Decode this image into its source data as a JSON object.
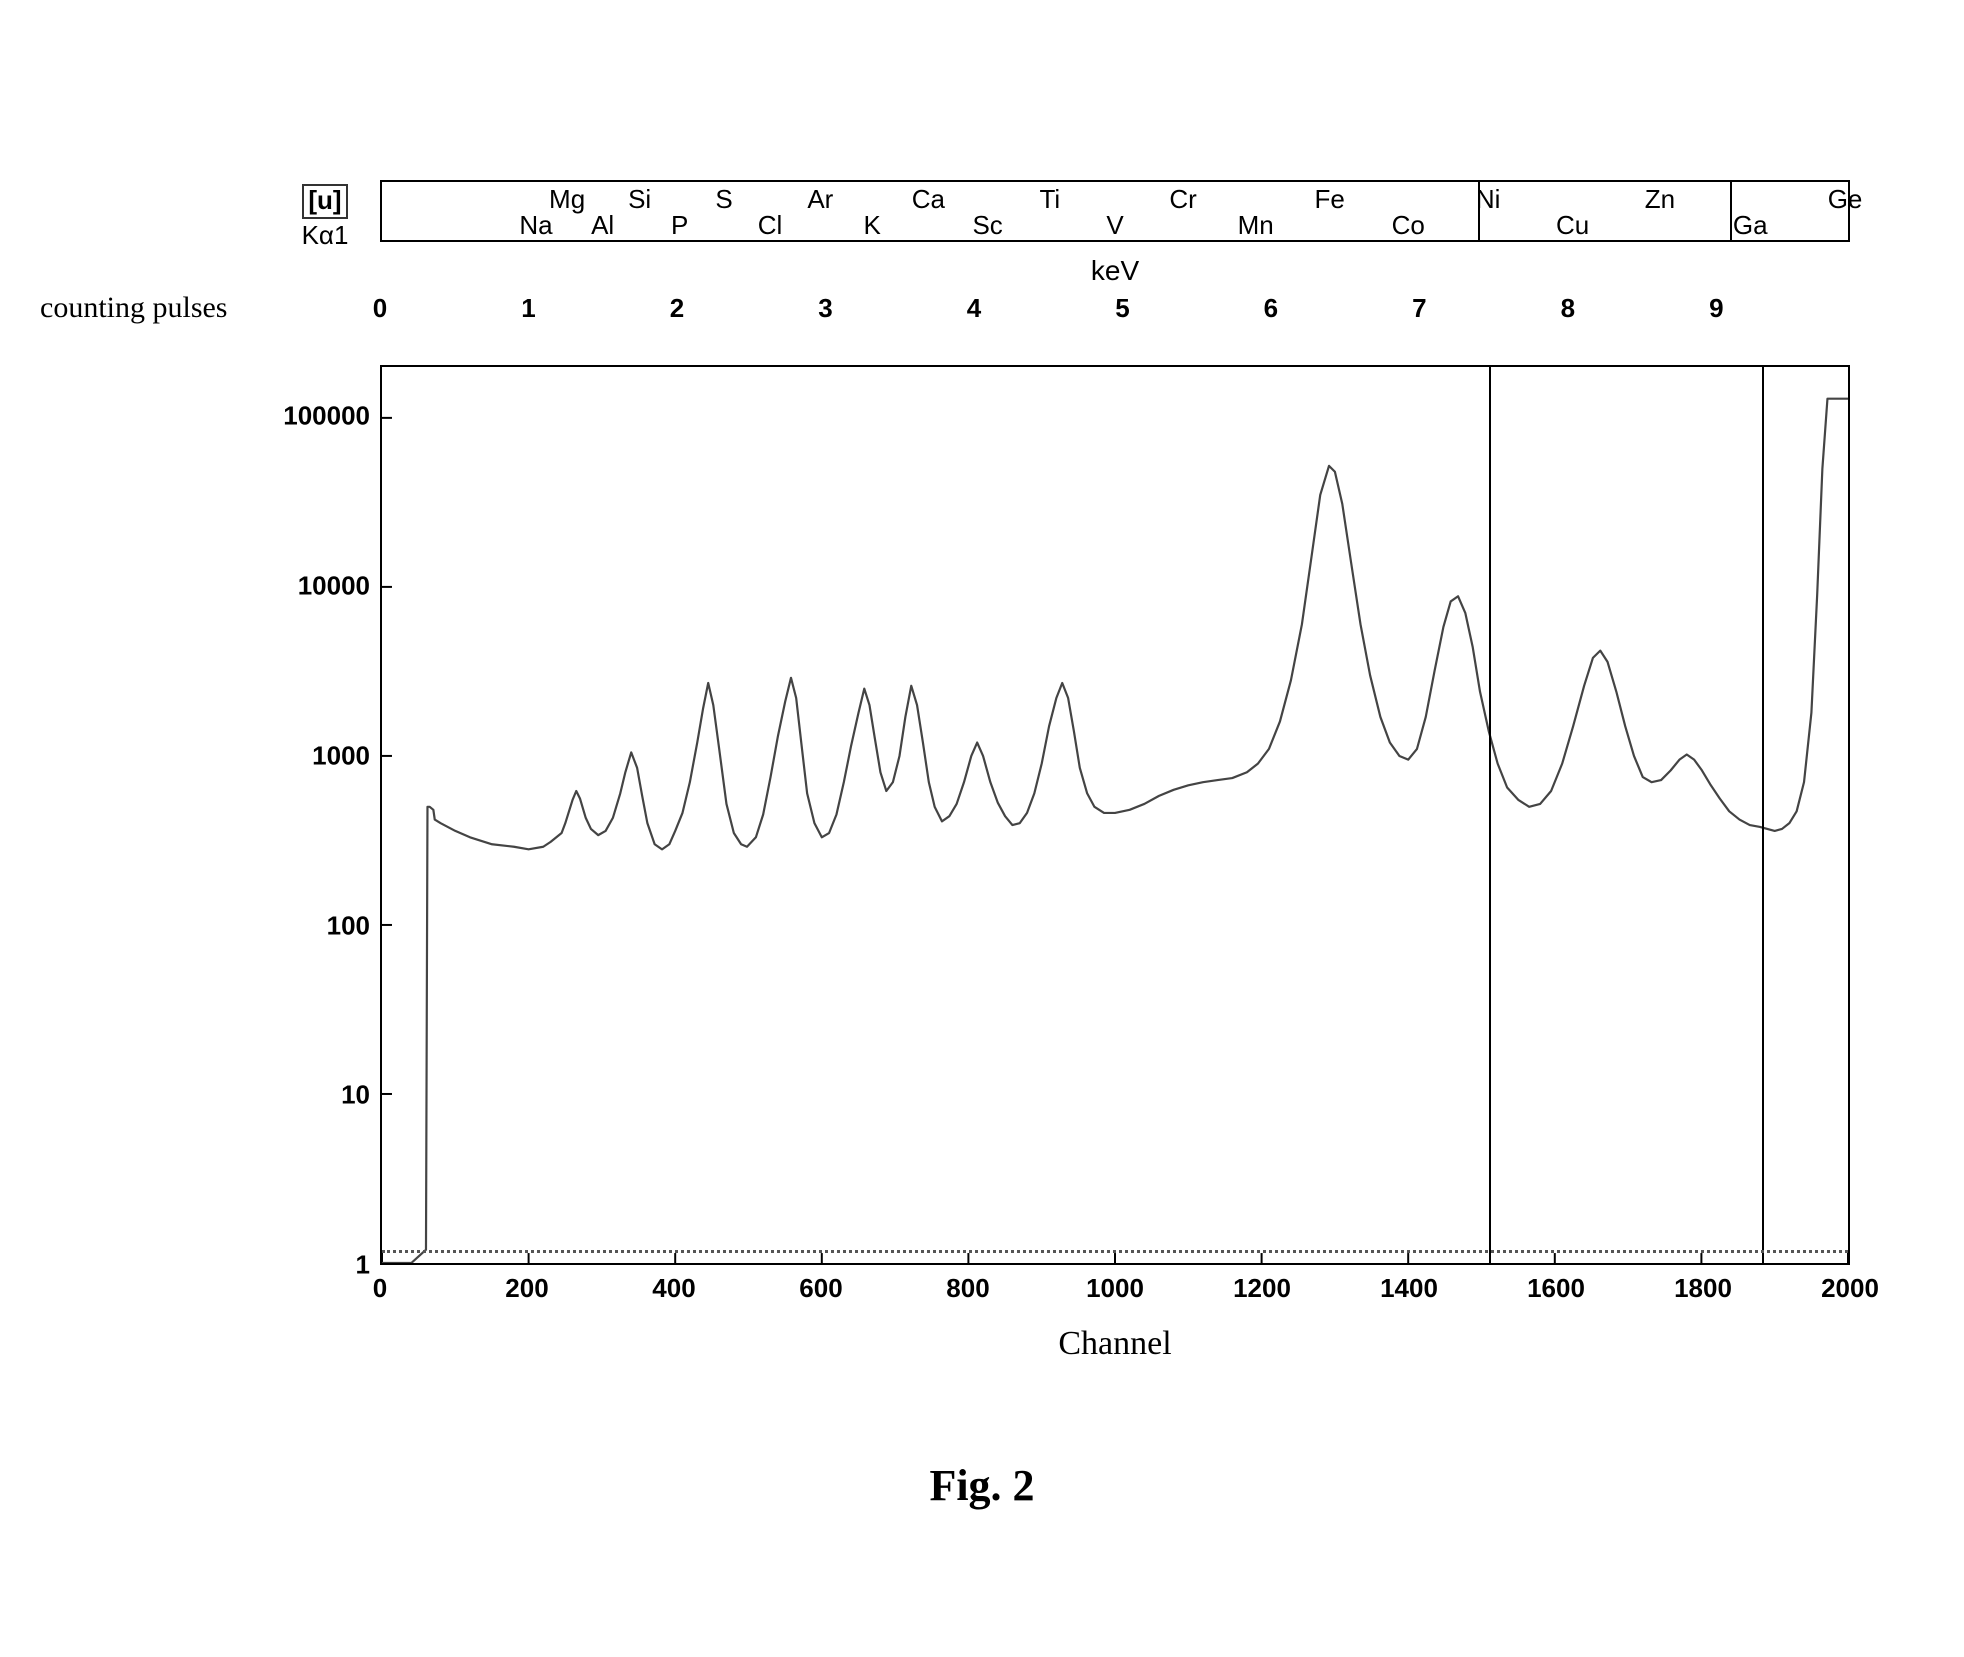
{
  "chart": {
    "type": "line",
    "element_bar": {
      "label_top_boxed": "[u]",
      "label_bottom": "Kα1",
      "elements": [
        {
          "symbol": "Na",
          "kev": 1.04,
          "row": "bottom"
        },
        {
          "symbol": "Mg",
          "kev": 1.25,
          "row": "top"
        },
        {
          "symbol": "Al",
          "kev": 1.49,
          "row": "bottom"
        },
        {
          "symbol": "Si",
          "kev": 1.74,
          "row": "top"
        },
        {
          "symbol": "P",
          "kev": 2.01,
          "row": "bottom"
        },
        {
          "symbol": "S",
          "kev": 2.31,
          "row": "top"
        },
        {
          "symbol": "Cl",
          "kev": 2.62,
          "row": "bottom"
        },
        {
          "symbol": "Ar",
          "kev": 2.96,
          "row": "top"
        },
        {
          "symbol": "K",
          "kev": 3.31,
          "row": "bottom"
        },
        {
          "symbol": "Ca",
          "kev": 3.69,
          "row": "top"
        },
        {
          "symbol": "Sc",
          "kev": 4.09,
          "row": "bottom"
        },
        {
          "symbol": "Ti",
          "kev": 4.51,
          "row": "top"
        },
        {
          "symbol": "V",
          "kev": 4.95,
          "row": "bottom"
        },
        {
          "symbol": "Cr",
          "kev": 5.41,
          "row": "top"
        },
        {
          "symbol": "Mn",
          "kev": 5.9,
          "row": "bottom"
        },
        {
          "symbol": "Fe",
          "kev": 6.4,
          "row": "top"
        },
        {
          "symbol": "Co",
          "kev": 6.93,
          "row": "bottom"
        },
        {
          "symbol": "Ni",
          "kev": 7.47,
          "row": "top"
        },
        {
          "symbol": "Cu",
          "kev": 8.04,
          "row": "bottom"
        },
        {
          "symbol": "Zn",
          "kev": 8.63,
          "row": "top"
        },
        {
          "symbol": "Ga",
          "kev": 9.24,
          "row": "bottom"
        },
        {
          "symbol": "Ge",
          "kev": 9.88,
          "row": "top"
        }
      ],
      "dividers_kev": [
        7.4,
        9.1
      ],
      "kev_min": 0,
      "kev_max": 9.9
    },
    "kev_axis": {
      "label": "keV",
      "ticks": [
        0,
        1,
        2,
        3,
        4,
        5,
        6,
        7,
        8,
        9
      ]
    },
    "y_axis": {
      "label": "counting pulses",
      "scale": "log",
      "ticks": [
        1,
        10,
        100,
        1000,
        10000,
        100000
      ],
      "tick_labels": [
        "1",
        "10",
        "100",
        "1000",
        "10000",
        "100000"
      ],
      "min": 1,
      "max": 200000
    },
    "x_axis": {
      "label": "Channel",
      "min": 0,
      "max": 2000,
      "ticks": [
        0,
        200,
        400,
        600,
        800,
        1000,
        1200,
        1400,
        1600,
        1800,
        2000
      ]
    },
    "plot_vlines_channel": [
      1510,
      1882
    ],
    "baseline_dotted_y": 1.2,
    "line_color": "#444444",
    "line_width": 2.2,
    "background_color": "#ffffff",
    "spectrum": [
      [
        0,
        1
      ],
      [
        40,
        1
      ],
      [
        60,
        1.2
      ],
      [
        62,
        500
      ],
      [
        65,
        500
      ],
      [
        70,
        480
      ],
      [
        72,
        420
      ],
      [
        80,
        400
      ],
      [
        100,
        360
      ],
      [
        120,
        330
      ],
      [
        150,
        300
      ],
      [
        180,
        290
      ],
      [
        200,
        280
      ],
      [
        220,
        290
      ],
      [
        230,
        310
      ],
      [
        245,
        350
      ],
      [
        250,
        400
      ],
      [
        260,
        550
      ],
      [
        265,
        620
      ],
      [
        270,
        560
      ],
      [
        278,
        430
      ],
      [
        285,
        370
      ],
      [
        295,
        340
      ],
      [
        305,
        360
      ],
      [
        315,
        430
      ],
      [
        325,
        600
      ],
      [
        332,
        800
      ],
      [
        340,
        1050
      ],
      [
        348,
        850
      ],
      [
        355,
        580
      ],
      [
        362,
        400
      ],
      [
        372,
        300
      ],
      [
        382,
        280
      ],
      [
        392,
        300
      ],
      [
        400,
        360
      ],
      [
        410,
        460
      ],
      [
        420,
        700
      ],
      [
        430,
        1200
      ],
      [
        438,
        1900
      ],
      [
        445,
        2700
      ],
      [
        452,
        2000
      ],
      [
        460,
        1100
      ],
      [
        470,
        520
      ],
      [
        480,
        350
      ],
      [
        490,
        300
      ],
      [
        498,
        290
      ],
      [
        510,
        330
      ],
      [
        520,
        450
      ],
      [
        530,
        750
      ],
      [
        540,
        1300
      ],
      [
        550,
        2100
      ],
      [
        558,
        2900
      ],
      [
        565,
        2200
      ],
      [
        572,
        1200
      ],
      [
        580,
        600
      ],
      [
        590,
        400
      ],
      [
        600,
        330
      ],
      [
        610,
        350
      ],
      [
        620,
        450
      ],
      [
        630,
        700
      ],
      [
        640,
        1150
      ],
      [
        650,
        1800
      ],
      [
        658,
        2500
      ],
      [
        665,
        2000
      ],
      [
        672,
        1300
      ],
      [
        680,
        800
      ],
      [
        688,
        620
      ],
      [
        697,
        700
      ],
      [
        706,
        1000
      ],
      [
        714,
        1700
      ],
      [
        722,
        2600
      ],
      [
        730,
        2000
      ],
      [
        738,
        1200
      ],
      [
        746,
        700
      ],
      [
        754,
        500
      ],
      [
        764,
        410
      ],
      [
        774,
        440
      ],
      [
        784,
        520
      ],
      [
        794,
        700
      ],
      [
        804,
        1000
      ],
      [
        812,
        1200
      ],
      [
        820,
        1000
      ],
      [
        830,
        700
      ],
      [
        840,
        530
      ],
      [
        850,
        440
      ],
      [
        860,
        390
      ],
      [
        870,
        400
      ],
      [
        880,
        460
      ],
      [
        890,
        600
      ],
      [
        900,
        900
      ],
      [
        910,
        1500
      ],
      [
        920,
        2200
      ],
      [
        928,
        2700
      ],
      [
        936,
        2200
      ],
      [
        944,
        1400
      ],
      [
        952,
        850
      ],
      [
        962,
        600
      ],
      [
        972,
        500
      ],
      [
        985,
        460
      ],
      [
        1000,
        460
      ],
      [
        1020,
        480
      ],
      [
        1040,
        520
      ],
      [
        1060,
        580
      ],
      [
        1080,
        630
      ],
      [
        1100,
        670
      ],
      [
        1120,
        700
      ],
      [
        1140,
        720
      ],
      [
        1160,
        740
      ],
      [
        1180,
        800
      ],
      [
        1195,
        900
      ],
      [
        1210,
        1100
      ],
      [
        1225,
        1600
      ],
      [
        1240,
        2800
      ],
      [
        1255,
        6000
      ],
      [
        1268,
        15000
      ],
      [
        1280,
        35000
      ],
      [
        1292,
        52000
      ],
      [
        1300,
        48000
      ],
      [
        1310,
        31000
      ],
      [
        1322,
        14000
      ],
      [
        1335,
        6000
      ],
      [
        1348,
        3000
      ],
      [
        1362,
        1700
      ],
      [
        1375,
        1200
      ],
      [
        1388,
        1000
      ],
      [
        1400,
        950
      ],
      [
        1412,
        1100
      ],
      [
        1424,
        1700
      ],
      [
        1436,
        3200
      ],
      [
        1448,
        5800
      ],
      [
        1458,
        8200
      ],
      [
        1468,
        8800
      ],
      [
        1478,
        7000
      ],
      [
        1488,
        4400
      ],
      [
        1498,
        2400
      ],
      [
        1510,
        1400
      ],
      [
        1522,
        900
      ],
      [
        1535,
        650
      ],
      [
        1550,
        550
      ],
      [
        1565,
        500
      ],
      [
        1580,
        520
      ],
      [
        1595,
        620
      ],
      [
        1610,
        900
      ],
      [
        1625,
        1500
      ],
      [
        1640,
        2600
      ],
      [
        1652,
        3800
      ],
      [
        1662,
        4200
      ],
      [
        1672,
        3600
      ],
      [
        1684,
        2400
      ],
      [
        1696,
        1500
      ],
      [
        1708,
        1000
      ],
      [
        1720,
        750
      ],
      [
        1732,
        700
      ],
      [
        1745,
        720
      ],
      [
        1758,
        820
      ],
      [
        1770,
        950
      ],
      [
        1780,
        1020
      ],
      [
        1790,
        950
      ],
      [
        1800,
        830
      ],
      [
        1812,
        680
      ],
      [
        1825,
        560
      ],
      [
        1838,
        470
      ],
      [
        1852,
        420
      ],
      [
        1866,
        390
      ],
      [
        1880,
        380
      ],
      [
        1890,
        370
      ],
      [
        1900,
        360
      ],
      [
        1910,
        370
      ],
      [
        1920,
        400
      ],
      [
        1930,
        470
      ],
      [
        1940,
        700
      ],
      [
        1950,
        1800
      ],
      [
        1958,
        9000
      ],
      [
        1965,
        50000
      ],
      [
        1972,
        130000
      ],
      [
        1980,
        130000
      ],
      [
        1990,
        130000
      ],
      [
        2000,
        130000
      ]
    ]
  },
  "caption": "Fig. 2"
}
